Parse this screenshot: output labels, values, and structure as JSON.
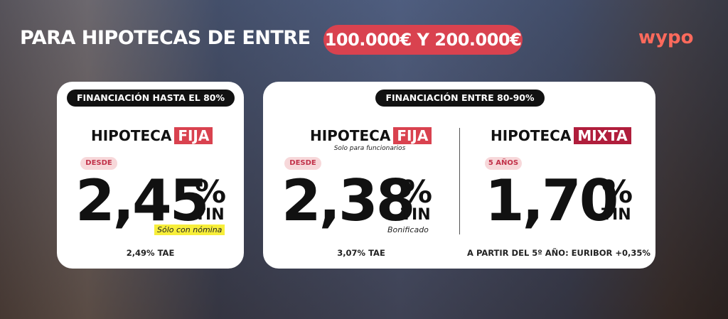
{
  "header": {
    "title": "PARA HIPOTECAS DE ENTRE",
    "range": "100.000€ Y 200.000€",
    "logo": "wypo"
  },
  "cards": [
    {
      "tab": "FINANCIACIÓN HASTA EL 80%",
      "offers": [
        {
          "product": "HIPOTECA",
          "kind": "FIJA",
          "badge": "DESDE",
          "rate": "2,45",
          "percent": "%",
          "rate_type": "TIN",
          "note": "Sólo con nómina",
          "tae": "2,49% TAE"
        }
      ]
    },
    {
      "tab": "FINANCIACIÓN ENTRE 80-90%",
      "offers": [
        {
          "product": "HIPOTECA",
          "kind": "FIJA",
          "subtitle": "Solo para funcionarios",
          "badge": "DESDE",
          "rate": "2,38",
          "percent": "%",
          "rate_type": "TIN",
          "note": "Bonificado",
          "tae": "3,07% TAE"
        },
        {
          "product": "HIPOTECA",
          "kind": "MIXTA",
          "badge": "5 AÑOS",
          "rate": "1,70",
          "percent": "%",
          "rate_type": "TIN",
          "tae": "A PARTIR DEL 5º AÑO: EURIBOR  +0,35%"
        }
      ]
    }
  ]
}
